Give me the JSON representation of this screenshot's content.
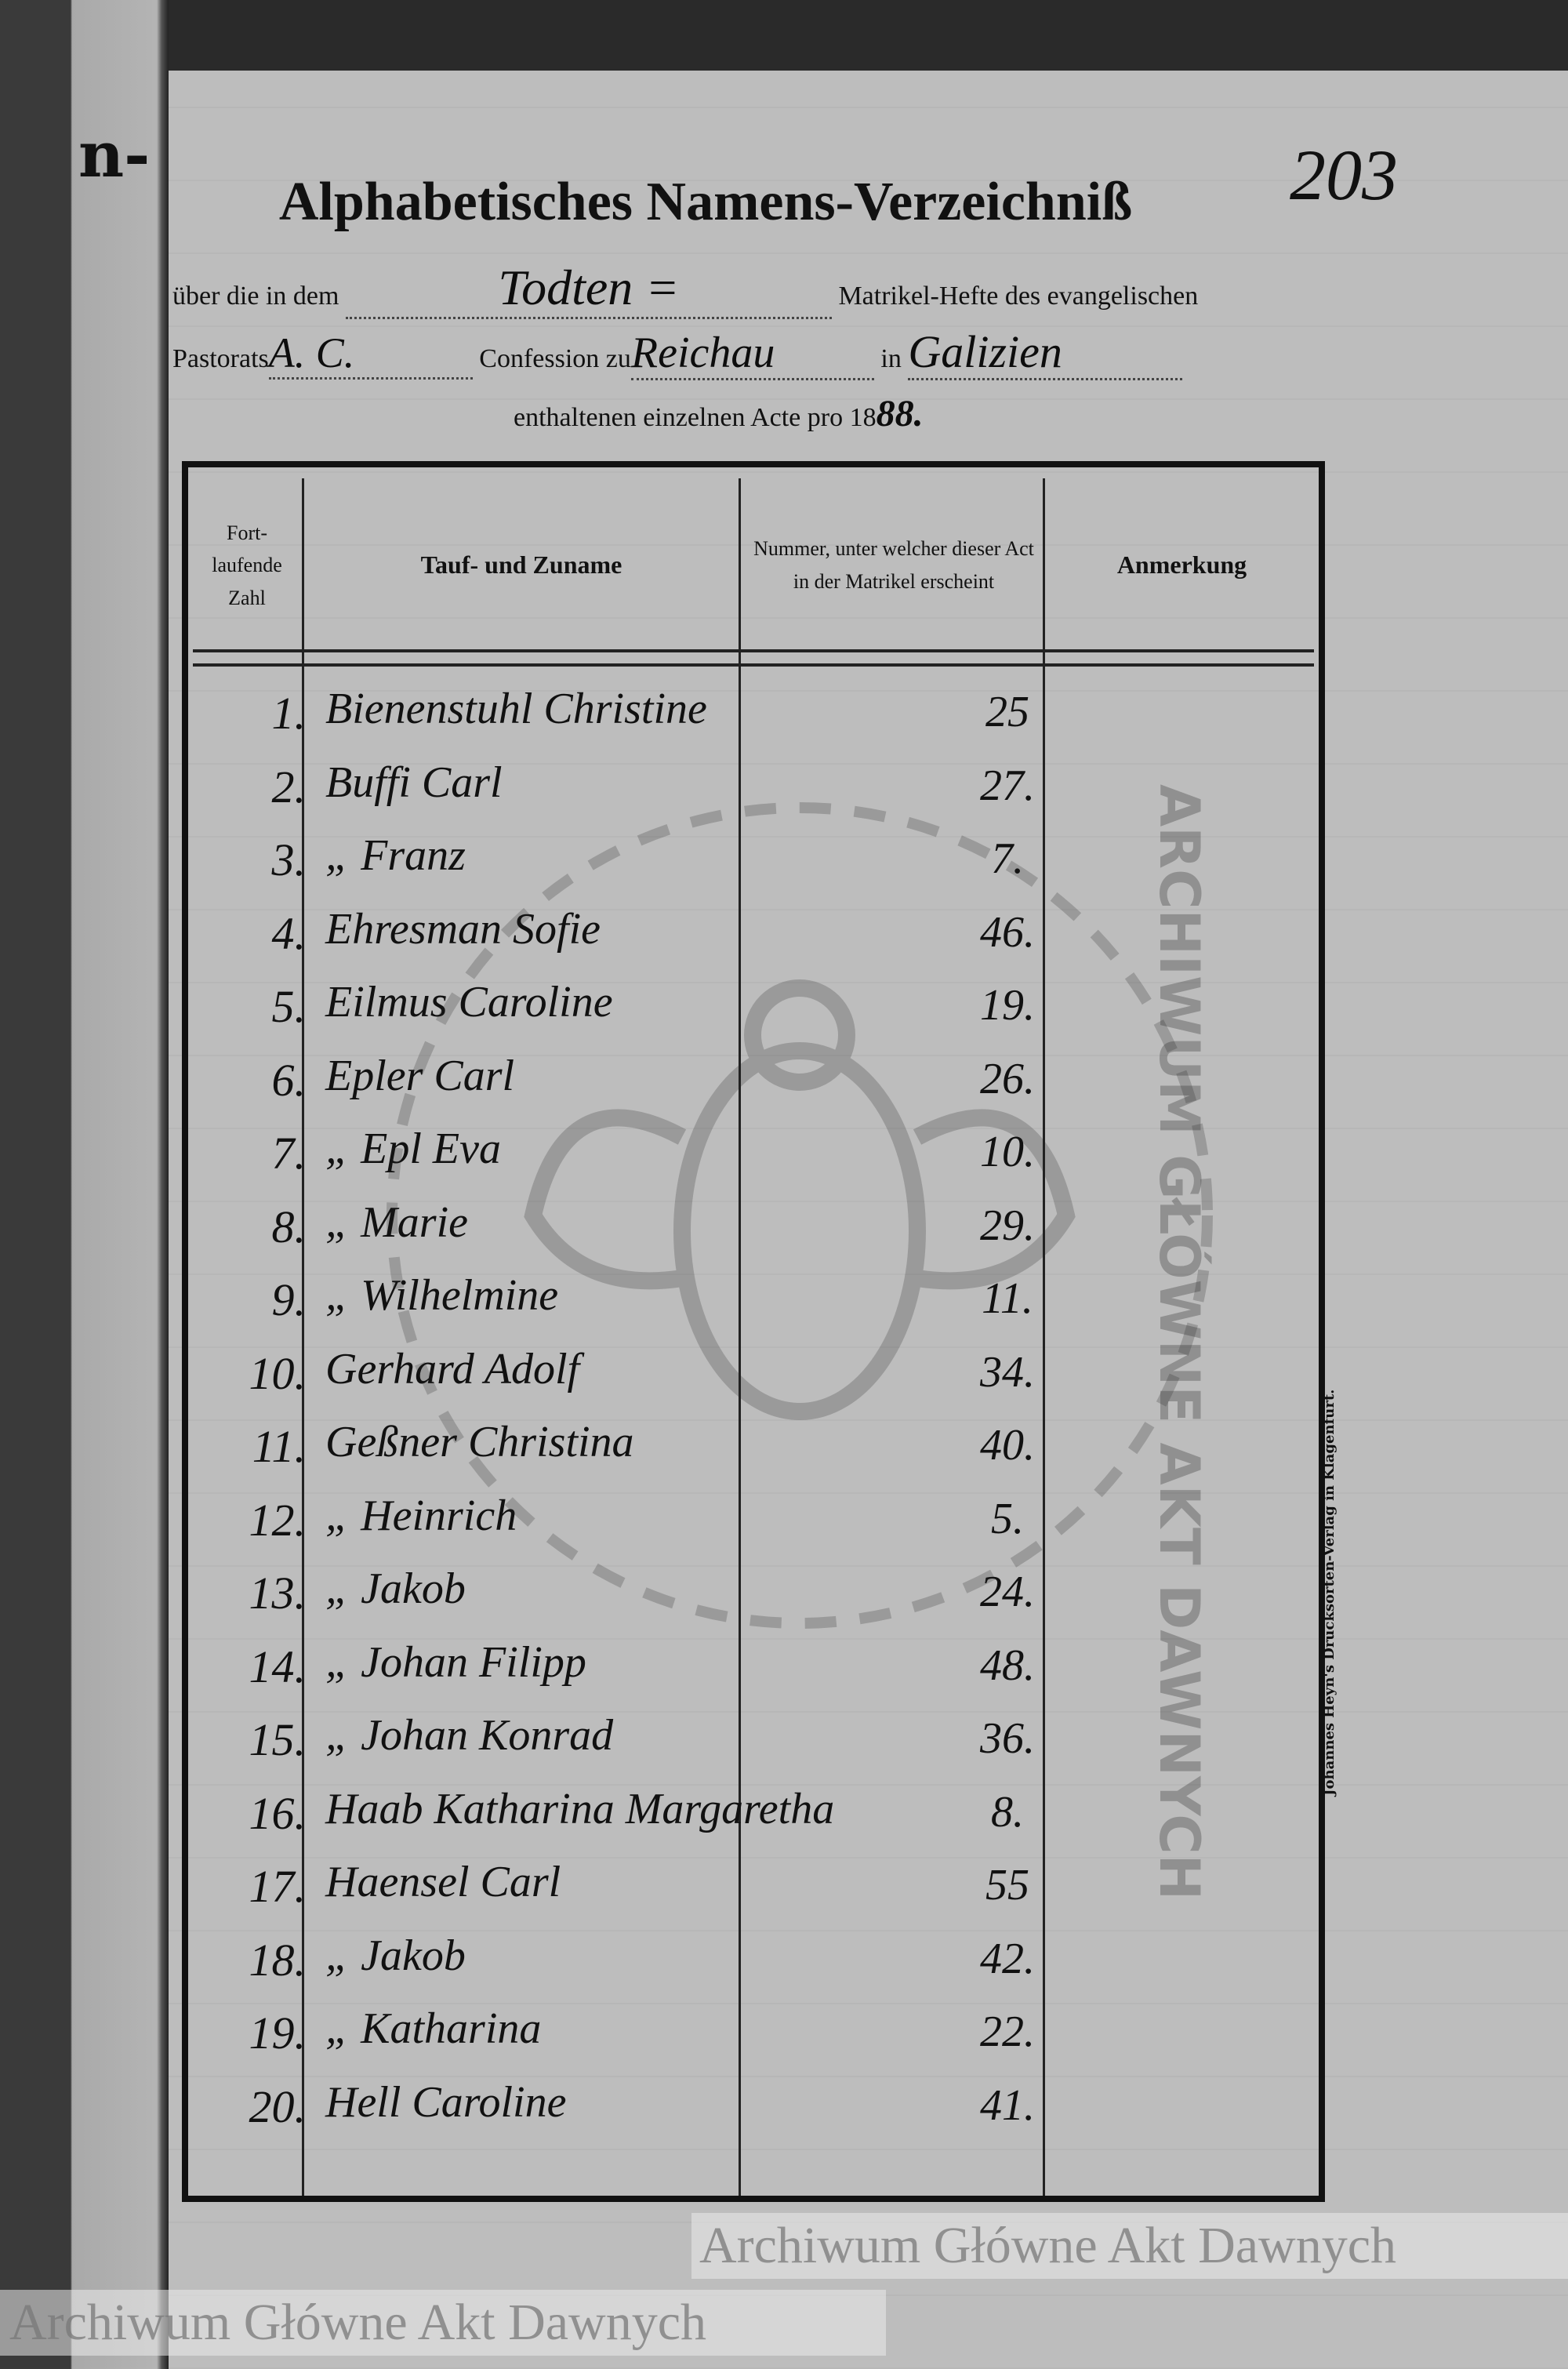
{
  "left_page_fragment": "n-",
  "page_number": "203",
  "title": "Alphabetisches Namens-Verzeichniß",
  "form": {
    "line1_prefix": "über die in dem",
    "register_type": "Todten =",
    "line1_suffix": "Matrikel-Hefte des evangelischen",
    "line2_prefix": "Pastorats",
    "confession": "A. C.",
    "line2_mid": "Confession zu",
    "place": "Reichau",
    "line2_in": "in",
    "region": "Galizien",
    "line3_prefix": "enthaltenen einzelnen Acte pro 18",
    "year_suffix": "88."
  },
  "table": {
    "headers": {
      "number": "Fort- laufende Zahl",
      "name": "Tauf- und Zuname",
      "register_number": "Nummer, unter welcher dieser Act in der Matrikel erscheint",
      "remark": "Anmerkung"
    },
    "rows": [
      {
        "n": "1.",
        "name": "Bienenstuhl Christine",
        "num": "25"
      },
      {
        "n": "2.",
        "name": "Buffi Carl",
        "num": "27."
      },
      {
        "n": "3.",
        "name": "„ Franz",
        "num": "7."
      },
      {
        "n": "4.",
        "name": "Ehresman Sofie",
        "num": "46."
      },
      {
        "n": "5.",
        "name": "Eilmus Caroline",
        "num": "19."
      },
      {
        "n": "6.",
        "name": "Epler Carl",
        "num": "26."
      },
      {
        "n": "7.",
        "name": "„ Epl Eva",
        "num": "10."
      },
      {
        "n": "8.",
        "name": "„ Marie",
        "num": "29."
      },
      {
        "n": "9.",
        "name": "„ Wilhelmine",
        "num": "11."
      },
      {
        "n": "10.",
        "name": "Gerhard Adolf",
        "num": "34."
      },
      {
        "n": "11.",
        "name": "Geßner Christina",
        "num": "40."
      },
      {
        "n": "12.",
        "name": "„ Heinrich",
        "num": "5."
      },
      {
        "n": "13.",
        "name": "„ Jakob",
        "num": "24."
      },
      {
        "n": "14.",
        "name": "„ Johan Filipp",
        "num": "48."
      },
      {
        "n": "15.",
        "name": "„ Johan Konrad",
        "num": "36."
      },
      {
        "n": "16.",
        "name": "Haab Katharina Margaretha",
        "num": "8."
      },
      {
        "n": "17.",
        "name": "Haensel Carl",
        "num": "55"
      },
      {
        "n": "18.",
        "name": "„ Jakob",
        "num": "42."
      },
      {
        "n": "19.",
        "name": "„ Katharina",
        "num": "22."
      },
      {
        "n": "20.",
        "name": "Hell Caroline",
        "num": "41."
      }
    ]
  },
  "printer": "Johannes Heyn's Drucksorten-Verlag in Klagenfurt.",
  "watermarks": {
    "text_top": "Archiwum Główne Akt Dawnych",
    "text_bottom": "Archiwum Główne Akt Dawnych",
    "stamp_text": "ARCHIWUM GŁÓWNE AKT DAWNYCH"
  },
  "colors": {
    "paper": "#bdbdbd",
    "ink": "#111111",
    "border": "#2a2a2a"
  }
}
